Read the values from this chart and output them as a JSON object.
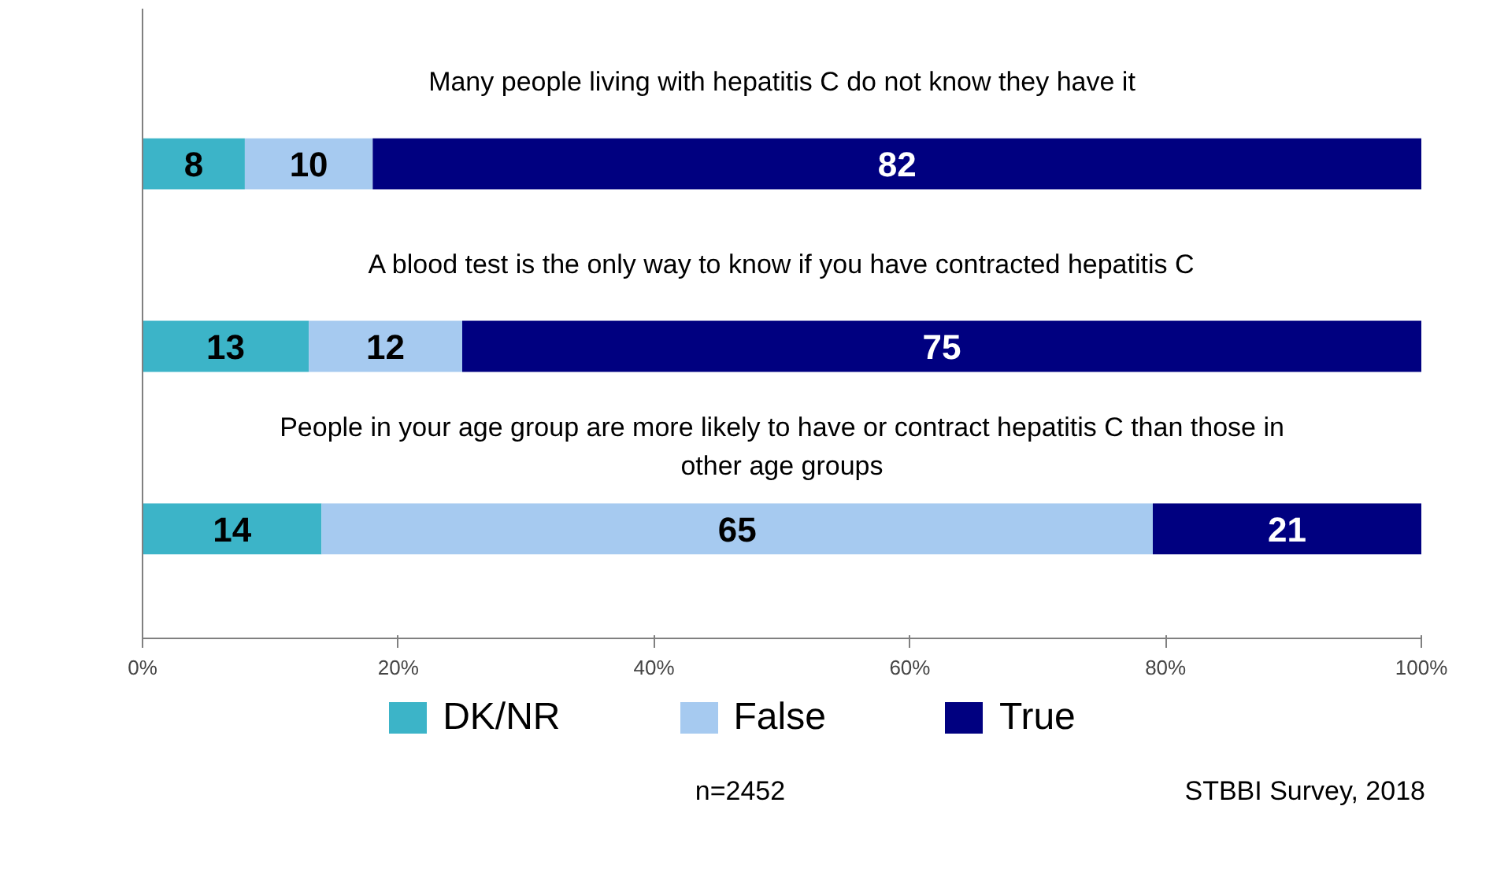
{
  "chart_data": {
    "type": "bar",
    "orientation": "horizontal",
    "stacked": true,
    "categories": [
      "Many people living with hepatitis C do not know they have it",
      "A blood test is the only way to know if you have contracted hepatitis C",
      "People in your age group are more likely to have or contract hepatitis C than those in other age groups"
    ],
    "series": [
      {
        "name": "DK/NR",
        "color": "#3cb4c8",
        "values": [
          8,
          13,
          14
        ]
      },
      {
        "name": "False",
        "color": "#a6caf0",
        "values": [
          10,
          12,
          65
        ]
      },
      {
        "name": "True",
        "color": "#000080",
        "values": [
          82,
          75,
          21
        ]
      }
    ],
    "xlim": [
      0,
      100
    ],
    "xticks": [
      {
        "value": 0,
        "label": "0%"
      },
      {
        "value": 20,
        "label": "20%"
      },
      {
        "value": 40,
        "label": "40%"
      },
      {
        "value": 60,
        "label": "60%"
      },
      {
        "value": 80,
        "label": "80%"
      },
      {
        "value": 100,
        "label": "100%"
      }
    ],
    "data_labels": true,
    "grid": false,
    "legend": "bottom",
    "annotations": [
      "n=2452",
      "STBBI Survey, 2018"
    ]
  }
}
